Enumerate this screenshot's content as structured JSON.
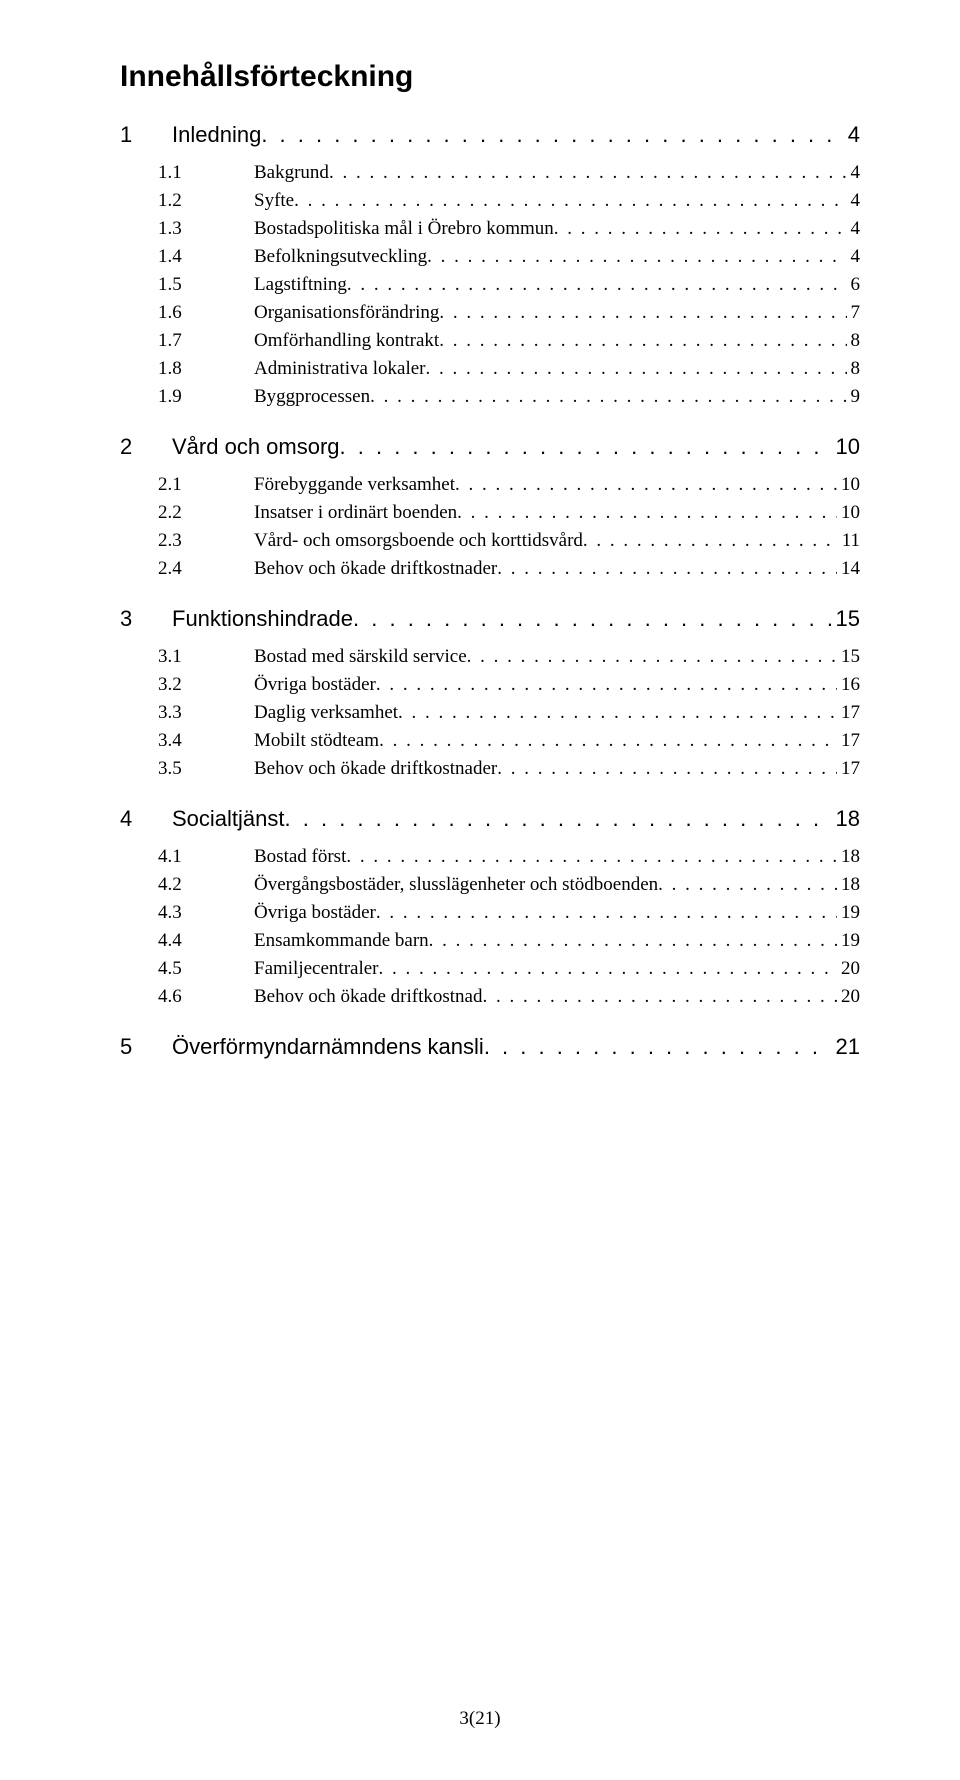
{
  "title": "Innehållsförteckning",
  "footer": {
    "this_page": "3",
    "total_pages": "21"
  },
  "entries": [
    {
      "level": 1,
      "num": "1",
      "label": "Inledning",
      "page": "4"
    },
    {
      "level": 2,
      "num": "1.1",
      "label": "Bakgrund",
      "page": "4"
    },
    {
      "level": 2,
      "num": "1.2",
      "label": "Syfte",
      "page": "4"
    },
    {
      "level": 2,
      "num": "1.3",
      "label": "Bostadspolitiska mål i Örebro kommun",
      "page": "4"
    },
    {
      "level": 2,
      "num": "1.4",
      "label": "Befolkningsutveckling",
      "page": "4"
    },
    {
      "level": 2,
      "num": "1.5",
      "label": "Lagstiftning",
      "page": "6"
    },
    {
      "level": 2,
      "num": "1.6",
      "label": "Organisationsförändring",
      "page": "7"
    },
    {
      "level": 2,
      "num": "1.7",
      "label": "Omförhandling kontrakt",
      "page": "8"
    },
    {
      "level": 2,
      "num": "1.8",
      "label": "Administrativa lokaler",
      "page": "8"
    },
    {
      "level": 2,
      "num": "1.9",
      "label": "Byggprocessen",
      "page": "9"
    },
    {
      "level": 1,
      "num": "2",
      "label": "Vård och omsorg",
      "page": "10"
    },
    {
      "level": 2,
      "num": "2.1",
      "label": "Förebyggande verksamhet",
      "page": "10"
    },
    {
      "level": 2,
      "num": "2.2",
      "label": "Insatser i ordinärt boenden",
      "page": "10"
    },
    {
      "level": 2,
      "num": "2.3",
      "label": "Vård- och omsorgsboende och korttidsvård",
      "page": "11"
    },
    {
      "level": 2,
      "num": "2.4",
      "label": "Behov och ökade driftkostnader",
      "page": "14"
    },
    {
      "level": 1,
      "num": "3",
      "label": "Funktionshindrade",
      "page": "15"
    },
    {
      "level": 2,
      "num": "3.1",
      "label": "Bostad med särskild service",
      "page": "15"
    },
    {
      "level": 2,
      "num": "3.2",
      "label": "Övriga bostäder",
      "page": "16"
    },
    {
      "level": 2,
      "num": "3.3",
      "label": "Daglig verksamhet",
      "page": "17"
    },
    {
      "level": 2,
      "num": "3.4",
      "label": "Mobilt stödteam",
      "page": "17"
    },
    {
      "level": 2,
      "num": "3.5",
      "label": "Behov och ökade driftkostnader",
      "page": "17"
    },
    {
      "level": 1,
      "num": "4",
      "label": "Socialtjänst",
      "page": "18"
    },
    {
      "level": 2,
      "num": "4.1",
      "label": "Bostad först",
      "page": "18"
    },
    {
      "level": 2,
      "num": "4.2",
      "label": "Övergångsbostäder, slusslägenheter och stödboenden",
      "page": "18"
    },
    {
      "level": 2,
      "num": "4.3",
      "label": "Övriga bostäder",
      "page": "19"
    },
    {
      "level": 2,
      "num": "4.4",
      "label": "Ensamkommande barn",
      "page": "19"
    },
    {
      "level": 2,
      "num": "4.5",
      "label": "Familjecentraler",
      "page": "20"
    },
    {
      "level": 2,
      "num": "4.6",
      "label": "Behov och ökade driftkostnad",
      "page": "20"
    },
    {
      "level": 1,
      "num": "5",
      "label": "Överförmyndarnämndens kansli",
      "page": "21"
    }
  ]
}
